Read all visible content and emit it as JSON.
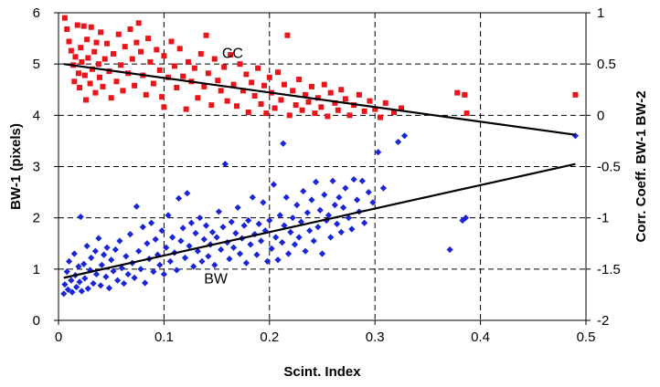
{
  "chart_data": {
    "type": "scatter",
    "title": "",
    "xlabel": "Scint. Index",
    "ylabel": "BW-1 (pixels)",
    "y2label": "Corr. Coeff. BW-1 BW-2",
    "xlim": [
      0,
      0.5
    ],
    "ylim": [
      0,
      6
    ],
    "y2lim": [
      -2,
      1
    ],
    "x_ticks": [
      "0",
      "0.1",
      "0.2",
      "0.3",
      "0.4",
      "0.5"
    ],
    "y_ticks": [
      "0",
      "1",
      "2",
      "3",
      "4",
      "5",
      "6"
    ],
    "y2_ticks": [
      "-2",
      "-1.5",
      "-1",
      "-0.5",
      "0",
      "0.5",
      "1"
    ],
    "grid": true,
    "grid_style": "dashed",
    "legend": "none",
    "annotations": [
      {
        "text": "CC",
        "x": 0.155,
        "y": 5.12
      },
      {
        "text": "BW",
        "x": 0.138,
        "y": 0.72
      }
    ],
    "series": [
      {
        "axis": "right",
        "color": "#e8161a",
        "marker": "square",
        "points": [
          [
            0.006,
            0.95
          ],
          [
            0.008,
            0.84
          ],
          [
            0.01,
            0.72
          ],
          [
            0.012,
            0.63
          ],
          [
            0.014,
            0.49
          ],
          [
            0.015,
            0.33
          ],
          [
            0.016,
            0.57
          ],
          [
            0.018,
            0.88
          ],
          [
            0.019,
            0.41
          ],
          [
            0.02,
            0.27
          ],
          [
            0.021,
            0.66
          ],
          [
            0.022,
            0.52
          ],
          [
            0.024,
            0.87
          ],
          [
            0.025,
            0.39
          ],
          [
            0.026,
            0.15
          ],
          [
            0.027,
            0.74
          ],
          [
            0.028,
            0.56
          ],
          [
            0.03,
            0.31
          ],
          [
            0.031,
            0.86
          ],
          [
            0.032,
            0.45
          ],
          [
            0.034,
            0.62
          ],
          [
            0.035,
            0.22
          ],
          [
            0.036,
            0.71
          ],
          [
            0.038,
            0.5
          ],
          [
            0.039,
            0.37
          ],
          [
            0.04,
            0.81
          ],
          [
            0.042,
            0.28
          ],
          [
            0.044,
            0.55
          ],
          [
            0.046,
            0.7
          ],
          [
            0.048,
            0.43
          ],
          [
            0.05,
            0.17
          ],
          [
            0.052,
            0.6
          ],
          [
            0.055,
            0.33
          ],
          [
            0.057,
            0.79
          ],
          [
            0.059,
            0.49
          ],
          [
            0.061,
            0.24
          ],
          [
            0.063,
            0.67
          ],
          [
            0.066,
            0.41
          ],
          [
            0.068,
            0.84
          ],
          [
            0.07,
            0.55
          ],
          [
            0.072,
            0.29
          ],
          [
            0.074,
            0.71
          ],
          [
            0.076,
            0.9
          ],
          [
            0.078,
            0.62
          ],
          [
            0.08,
            0.39
          ],
          [
            0.083,
            0.2
          ],
          [
            0.085,
            0.75
          ],
          [
            0.087,
            0.52
          ],
          [
            0.09,
            0.31
          ],
          [
            0.093,
            0.64
          ],
          [
            0.096,
            0.44
          ],
          [
            0.098,
            0.18
          ],
          [
            0.1,
            0.58
          ],
          [
            0.1,
            0.08
          ],
          [
            0.104,
            0.37
          ],
          [
            0.107,
            0.72
          ],
          [
            0.11,
            0.48
          ],
          [
            0.112,
            0.27
          ],
          [
            0.115,
            0.65
          ],
          [
            0.118,
            0.38
          ],
          [
            0.121,
            0.06
          ],
          [
            0.123,
            0.52
          ],
          [
            0.126,
            0.33
          ],
          [
            0.129,
            0.46
          ],
          [
            0.132,
            0.17
          ],
          [
            0.135,
            0.6
          ],
          [
            0.138,
            0.28
          ],
          [
            0.14,
            0.78
          ],
          [
            0.142,
            0.41
          ],
          [
            0.145,
            0.1
          ],
          [
            0.148,
            0.55
          ],
          [
            0.151,
            0.34
          ],
          [
            0.154,
            0.24
          ],
          [
            0.157,
            0.47
          ],
          [
            0.16,
            0.14
          ],
          [
            0.163,
            0.59
          ],
          [
            0.166,
            0.3
          ],
          [
            0.169,
            0.09
          ],
          [
            0.172,
            0.5
          ],
          [
            0.175,
            0.24
          ],
          [
            0.178,
            0.4
          ],
          [
            0.18,
            0.03
          ],
          [
            0.183,
            0.32
          ],
          [
            0.186,
            0.19
          ],
          [
            0.189,
            0.46
          ],
          [
            0.192,
            0.11
          ],
          [
            0.195,
            0.29
          ],
          [
            0.197,
            0.02
          ],
          [
            0.2,
            0.37
          ],
          [
            0.202,
            0.22
          ],
          [
            0.205,
            0.07
          ],
          [
            0.208,
            0.42
          ],
          [
            0.211,
            0.15
          ],
          [
            0.214,
            0.3
          ],
          [
            0.217,
            0.78
          ],
          [
            0.219,
            0.0
          ],
          [
            0.222,
            0.24
          ],
          [
            0.225,
            0.1
          ],
          [
            0.228,
            0.35
          ],
          [
            0.231,
            0.05
          ],
          [
            0.234,
            0.2
          ],
          [
            0.237,
            0.13
          ],
          [
            0.24,
            0.28
          ],
          [
            0.243,
            0.02
          ],
          [
            0.246,
            0.17
          ],
          [
            0.249,
            0.08
          ],
          [
            0.252,
            0.3
          ],
          [
            0.255,
            -0.01
          ],
          [
            0.258,
            0.22
          ],
          [
            0.262,
            0.12
          ],
          [
            0.265,
            0.05
          ],
          [
            0.268,
            0.25
          ],
          [
            0.272,
            0.16
          ],
          [
            0.276,
            0.0
          ],
          [
            0.28,
            0.1
          ],
          [
            0.285,
            0.2
          ],
          [
            0.29,
            0.04
          ],
          [
            0.295,
            0.14
          ],
          [
            0.3,
            0.06
          ],
          [
            0.305,
            -0.02
          ],
          [
            0.31,
            0.12
          ],
          [
            0.318,
            0.03
          ],
          [
            0.325,
            0.07
          ],
          [
            0.378,
            0.22
          ],
          [
            0.385,
            0.2
          ],
          [
            0.387,
            0.02
          ],
          [
            0.49,
            0.2
          ]
        ]
      },
      {
        "axis": "left",
        "color": "#1a25d8",
        "marker": "diamond",
        "points": [
          [
            0.005,
            0.52
          ],
          [
            0.006,
            0.7
          ],
          [
            0.008,
            0.95
          ],
          [
            0.009,
            0.6
          ],
          [
            0.01,
            1.15
          ],
          [
            0.012,
            0.78
          ],
          [
            0.013,
            0.55
          ],
          [
            0.015,
            1.3
          ],
          [
            0.016,
            0.88
          ],
          [
            0.017,
            0.65
          ],
          [
            0.019,
            1.05
          ],
          [
            0.02,
            0.75
          ],
          [
            0.021,
            2.02
          ],
          [
            0.022,
            0.57
          ],
          [
            0.024,
            1.1
          ],
          [
            0.025,
            0.82
          ],
          [
            0.027,
            1.45
          ],
          [
            0.028,
            0.62
          ],
          [
            0.03,
            0.98
          ],
          [
            0.031,
            1.22
          ],
          [
            0.033,
            0.72
          ],
          [
            0.035,
            1.35
          ],
          [
            0.036,
            0.9
          ],
          [
            0.038,
            1.6
          ],
          [
            0.04,
            0.68
          ],
          [
            0.041,
            1.08
          ],
          [
            0.043,
            1.28
          ],
          [
            0.045,
            0.85
          ],
          [
            0.046,
            1.42
          ],
          [
            0.048,
            0.63
          ],
          [
            0.05,
            1.18
          ],
          [
            0.052,
            0.96
          ],
          [
            0.054,
            1.38
          ],
          [
            0.056,
            0.78
          ],
          [
            0.058,
            1.55
          ],
          [
            0.06,
            1.02
          ],
          [
            0.062,
            0.72
          ],
          [
            0.064,
            1.25
          ],
          [
            0.066,
            0.9
          ],
          [
            0.068,
            1.68
          ],
          [
            0.07,
            1.12
          ],
          [
            0.072,
            0.83
          ],
          [
            0.074,
            2.22
          ],
          [
            0.076,
            1.35
          ],
          [
            0.078,
            1.0
          ],
          [
            0.08,
            1.82
          ],
          [
            0.082,
            0.73
          ],
          [
            0.084,
            1.5
          ],
          [
            0.086,
            1.2
          ],
          [
            0.088,
            1.9
          ],
          [
            0.09,
            0.95
          ],
          [
            0.092,
            1.58
          ],
          [
            0.094,
            1.28
          ],
          [
            0.096,
            1.08
          ],
          [
            0.098,
            1.75
          ],
          [
            0.1,
            0.9
          ],
          [
            0.102,
            1.42
          ],
          [
            0.104,
            2.05
          ],
          [
            0.106,
            1.15
          ],
          [
            0.108,
            1.62
          ],
          [
            0.11,
            1.32
          ],
          [
            0.112,
            0.98
          ],
          [
            0.114,
            2.38
          ],
          [
            0.116,
            1.55
          ],
          [
            0.118,
            1.8
          ],
          [
            0.12,
            1.22
          ],
          [
            0.122,
            2.48
          ],
          [
            0.124,
            1.45
          ],
          [
            0.126,
            1.9
          ],
          [
            0.128,
            1.05
          ],
          [
            0.13,
            1.7
          ],
          [
            0.132,
            1.35
          ],
          [
            0.134,
            2.0
          ],
          [
            0.136,
            1.15
          ],
          [
            0.138,
            1.58
          ],
          [
            0.14,
            1.85
          ],
          [
            0.142,
            1.25
          ],
          [
            0.144,
            1.48
          ],
          [
            0.146,
            1.72
          ],
          [
            0.148,
            1.08
          ],
          [
            0.15,
            1.62
          ],
          [
            0.152,
            2.12
          ],
          [
            0.154,
            1.38
          ],
          [
            0.156,
            1.82
          ],
          [
            0.158,
            3.05
          ],
          [
            0.16,
            1.52
          ],
          [
            0.162,
            1.2
          ],
          [
            0.164,
            1.92
          ],
          [
            0.166,
            1.42
          ],
          [
            0.168,
            1.7
          ],
          [
            0.17,
            2.2
          ],
          [
            0.172,
            1.3
          ],
          [
            0.174,
            1.6
          ],
          [
            0.176,
            1.85
          ],
          [
            0.178,
            1.12
          ],
          [
            0.18,
            1.95
          ],
          [
            0.182,
            1.48
          ],
          [
            0.184,
            2.4
          ],
          [
            0.186,
            1.68
          ],
          [
            0.188,
            1.28
          ],
          [
            0.19,
            1.88
          ],
          [
            0.192,
            1.55
          ],
          [
            0.194,
            2.3
          ],
          [
            0.196,
            1.75
          ],
          [
            0.198,
            1.15
          ],
          [
            0.2,
            1.95
          ],
          [
            0.202,
            1.4
          ],
          [
            0.204,
            2.65
          ],
          [
            0.206,
            1.62
          ],
          [
            0.208,
            1.18
          ],
          [
            0.21,
            2.05
          ],
          [
            0.212,
            1.52
          ],
          [
            0.214,
            1.85
          ],
          [
            0.216,
            2.4
          ],
          [
            0.218,
            1.3
          ],
          [
            0.22,
            1.72
          ],
          [
            0.222,
            2.0
          ],
          [
            0.224,
            1.48
          ],
          [
            0.226,
            2.25
          ],
          [
            0.228,
            1.62
          ],
          [
            0.23,
            1.92
          ],
          [
            0.232,
            2.52
          ],
          [
            0.234,
            1.35
          ],
          [
            0.236,
            2.1
          ],
          [
            0.238,
            1.75
          ],
          [
            0.24,
            2.35
          ],
          [
            0.242,
            1.55
          ],
          [
            0.244,
            2.7
          ],
          [
            0.246,
            1.82
          ],
          [
            0.248,
            2.15
          ],
          [
            0.25,
            1.3
          ],
          [
            0.252,
            2.45
          ],
          [
            0.254,
            1.95
          ],
          [
            0.256,
            2.05
          ],
          [
            0.258,
            1.62
          ],
          [
            0.26,
            2.72
          ],
          [
            0.262,
            2.25
          ],
          [
            0.264,
            1.88
          ],
          [
            0.266,
            2.4
          ],
          [
            0.268,
            1.72
          ],
          [
            0.27,
            2.2
          ],
          [
            0.272,
            2.58
          ],
          [
            0.275,
            2.0
          ],
          [
            0.278,
            1.78
          ],
          [
            0.28,
            2.75
          ],
          [
            0.283,
            2.35
          ],
          [
            0.285,
            2.12
          ],
          [
            0.288,
            2.72
          ],
          [
            0.29,
            1.9
          ],
          [
            0.294,
            2.5
          ],
          [
            0.298,
            2.3
          ],
          [
            0.303,
            3.28
          ],
          [
            0.308,
            2.58
          ],
          [
            0.322,
            3.48
          ],
          [
            0.328,
            3.6
          ],
          [
            0.213,
            3.45
          ],
          [
            0.371,
            1.38
          ],
          [
            0.383,
            1.95
          ],
          [
            0.386,
            2.0
          ],
          [
            0.49,
            3.6
          ]
        ]
      }
    ],
    "trendlines": [
      {
        "axis": "right",
        "color": "#000000",
        "from": [
          0.005,
          0.5
        ],
        "to": [
          0.49,
          -0.19
        ]
      },
      {
        "axis": "left",
        "color": "#000000",
        "from": [
          0.005,
          0.83
        ],
        "to": [
          0.49,
          3.05
        ]
      }
    ]
  }
}
